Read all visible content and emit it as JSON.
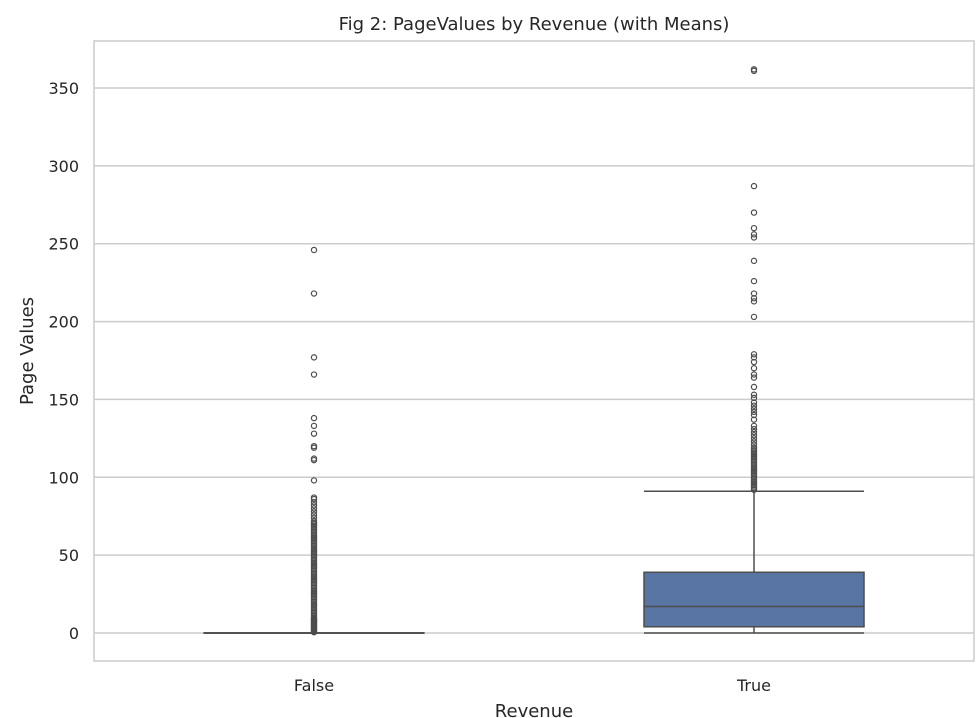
{
  "chart_data": {
    "type": "box",
    "title": "Fig 2: PageValues by Revenue (with Means)",
    "xlabel": "Revenue",
    "ylabel": "Page Values",
    "categories": [
      "False",
      "True"
    ],
    "ylim": [
      -18,
      380
    ],
    "yticks": [
      0,
      50,
      100,
      150,
      200,
      250,
      300,
      350
    ],
    "grid": "horizontal",
    "boxes": [
      {
        "category": "False",
        "q1": 0,
        "median": 0,
        "q3": 0,
        "whisker_low": 0,
        "whisker_high": 0,
        "color": "#ffffff",
        "outliers": [
          0.5,
          1,
          1.5,
          2,
          2.5,
          3,
          3.5,
          4,
          4.5,
          5,
          5.5,
          6,
          6.5,
          7,
          7.5,
          8,
          8.5,
          9,
          9.5,
          10,
          11,
          12,
          13,
          14,
          15,
          16,
          17,
          18,
          19,
          20,
          21,
          22,
          23,
          24,
          25,
          26,
          27,
          28,
          29,
          30,
          31,
          32,
          33,
          34,
          35,
          36,
          37,
          38,
          39,
          40,
          41,
          42,
          43,
          44,
          45,
          46,
          47,
          48,
          49,
          50,
          51,
          52,
          53,
          54,
          55,
          56,
          57,
          58,
          59,
          60,
          61,
          62,
          63,
          64,
          65,
          66,
          67,
          68,
          69,
          70,
          71,
          72,
          74,
          76,
          78,
          80,
          82,
          84,
          86,
          87,
          98,
          111,
          112,
          119,
          120,
          128,
          133,
          138,
          166,
          177,
          218,
          246
        ]
      },
      {
        "category": "True",
        "q1": 4,
        "median": 17,
        "q3": 39,
        "whisker_low": 0,
        "whisker_high": 91,
        "color": "#5975a4",
        "outliers": [
          92,
          93,
          94,
          95,
          96,
          97,
          98,
          99,
          100,
          101,
          102,
          103,
          104,
          105,
          106,
          107,
          108,
          109,
          110,
          111,
          112,
          113,
          114,
          115,
          116,
          117,
          118,
          119,
          121,
          123,
          125,
          127,
          129,
          131,
          133,
          137,
          140,
          142,
          144,
          146,
          148,
          151,
          153,
          158,
          164,
          166,
          170,
          174,
          177,
          179,
          203,
          213,
          215,
          218,
          226,
          239,
          254,
          256,
          260,
          270,
          287,
          361,
          362
        ]
      }
    ]
  }
}
